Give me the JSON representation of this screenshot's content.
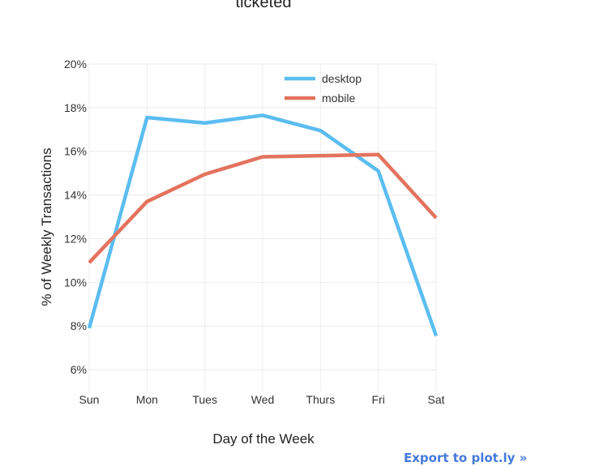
{
  "chart_data": {
    "type": "line",
    "title": "ticketed",
    "xlabel": "Day of the Week",
    "ylabel": "% of Weekly Transactions",
    "categories": [
      "Sun",
      "Mon",
      "Tues",
      "Wed",
      "Thurs",
      "Fri",
      "Sat"
    ],
    "y_ticks": [
      "6%",
      "8%",
      "10%",
      "12%",
      "14%",
      "16%",
      "18%",
      "20%"
    ],
    "ylim": [
      5,
      20
    ],
    "grid": true,
    "legend_position": "top-right",
    "series": [
      {
        "name": "desktop",
        "color": "#5bbdf0",
        "values": [
          7.9,
          17.55,
          17.3,
          17.65,
          16.95,
          15.1,
          7.55
        ]
      },
      {
        "name": "mobile",
        "color": "#e3735e",
        "values": [
          10.9,
          13.7,
          14.95,
          15.75,
          15.8,
          15.85,
          12.95
        ]
      }
    ]
  },
  "export_link": "Export to plot.ly »"
}
